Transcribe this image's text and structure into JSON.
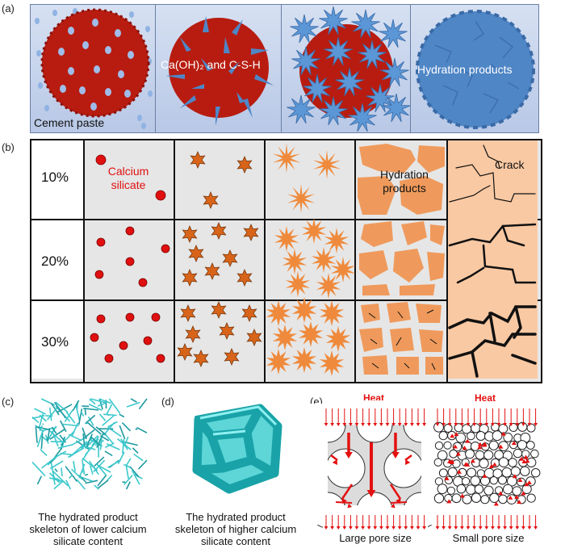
{
  "panel_a": {
    "label": "(a)",
    "text_cement": "Cement paste",
    "text_caoh": "Ca(OH)₂ and C-S-H",
    "text_hydration": "Hydration products"
  },
  "panel_b": {
    "label": "(b)",
    "rows": [
      "10%",
      "20%",
      "30%"
    ],
    "text_calcium_line1": "Calcium",
    "text_calcium_line2": "silicate",
    "text_hydration_line1": "Hydration",
    "text_hydration_line2": "products",
    "text_crack": "Crack"
  },
  "panel_c": {
    "label": "(c)",
    "caption_line1": "The hydrated product",
    "caption_line2": "skeleton of lower calcium",
    "caption_line3": "silicate content"
  },
  "panel_d": {
    "label": "(d)",
    "caption_line1": "The hydrated product",
    "caption_line2": "skeleton of higher calcium",
    "caption_line3": "silicate content"
  },
  "panel_e": {
    "label": "(e)",
    "heat_left": "Heat",
    "heat_right": "Heat",
    "caption_left": "Large pore size",
    "caption_right": "Small pore size"
  },
  "colors": {
    "cement_red": "#b81c10",
    "product_blue": "#4f86c6",
    "particle_red": "#e01010",
    "product_orange": "#ef9a5c",
    "heat_red": "#e41010",
    "skeleton_cyan": "#3cc8cc"
  }
}
